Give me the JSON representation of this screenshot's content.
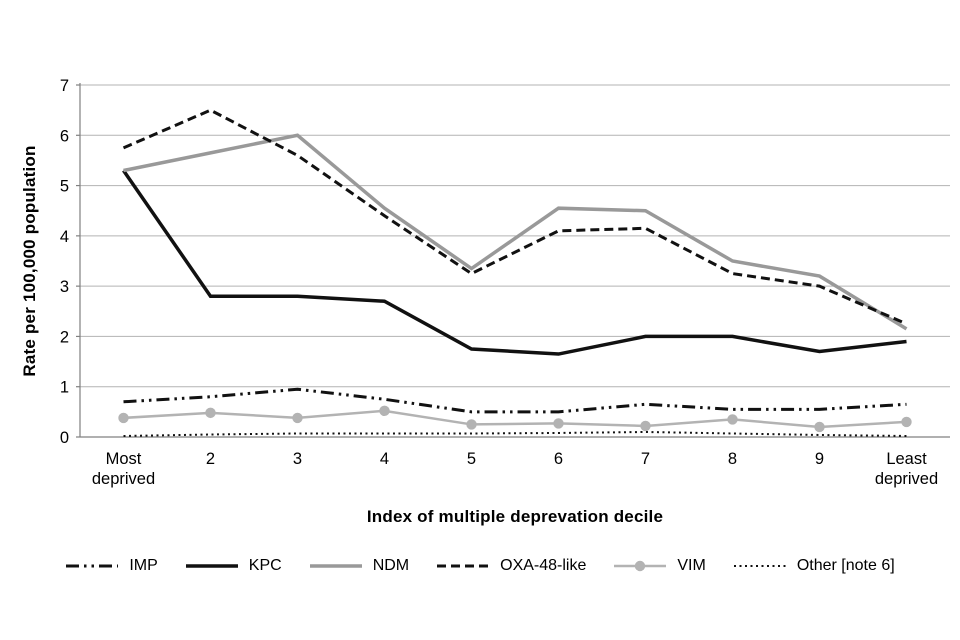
{
  "page": {
    "background": "#ffffff"
  },
  "chart_data": {
    "type": "line",
    "title": "",
    "xlabel": "Index of multiple deprevation decile",
    "ylabel": "Rate per 100,000 population",
    "categories": [
      "Most\ndeprived",
      "2",
      "3",
      "4",
      "5",
      "6",
      "7",
      "8",
      "9",
      "Least\ndeprived"
    ],
    "ylim": [
      0,
      7
    ],
    "yticks": [
      0,
      1,
      2,
      3,
      4,
      5,
      6,
      7
    ],
    "grid": "horizontal",
    "legend_position": "bottom",
    "series": [
      {
        "name": "IMP",
        "color": "#111111",
        "style": "dash-dot-dot",
        "width": 3,
        "marker": "none",
        "values": [
          0.7,
          0.8,
          0.95,
          0.75,
          0.5,
          0.5,
          0.65,
          0.55,
          0.55,
          0.65
        ]
      },
      {
        "name": "KPC",
        "color": "#111111",
        "style": "solid",
        "width": 3.5,
        "marker": "none",
        "values": [
          5.3,
          2.8,
          2.8,
          2.7,
          1.75,
          1.65,
          2.0,
          2.0,
          1.7,
          1.9
        ]
      },
      {
        "name": "NDM",
        "color": "#999999",
        "style": "solid",
        "width": 3.5,
        "marker": "none",
        "values": [
          5.3,
          5.65,
          6.0,
          4.55,
          3.35,
          4.55,
          4.5,
          3.5,
          3.2,
          2.15
        ]
      },
      {
        "name": "OXA-48-like",
        "color": "#111111",
        "style": "dashed",
        "width": 3,
        "marker": "none",
        "values": [
          5.75,
          6.5,
          5.6,
          4.4,
          3.25,
          4.1,
          4.15,
          3.25,
          3.0,
          2.25
        ]
      },
      {
        "name": "VIM",
        "color": "#b3b3b3",
        "style": "solid",
        "width": 2.5,
        "marker": "circle",
        "values": [
          0.38,
          0.48,
          0.38,
          0.52,
          0.25,
          0.27,
          0.22,
          0.35,
          0.2,
          0.3
        ]
      },
      {
        "name": "Other [note 6]",
        "color": "#111111",
        "style": "dotted",
        "width": 2,
        "marker": "none",
        "values": [
          0.02,
          0.05,
          0.07,
          0.07,
          0.07,
          0.08,
          0.1,
          0.07,
          0.04,
          0.02
        ]
      }
    ]
  },
  "colors": {
    "axis": "#808080",
    "gridline": "#b3b3b3",
    "text": "#000000"
  }
}
